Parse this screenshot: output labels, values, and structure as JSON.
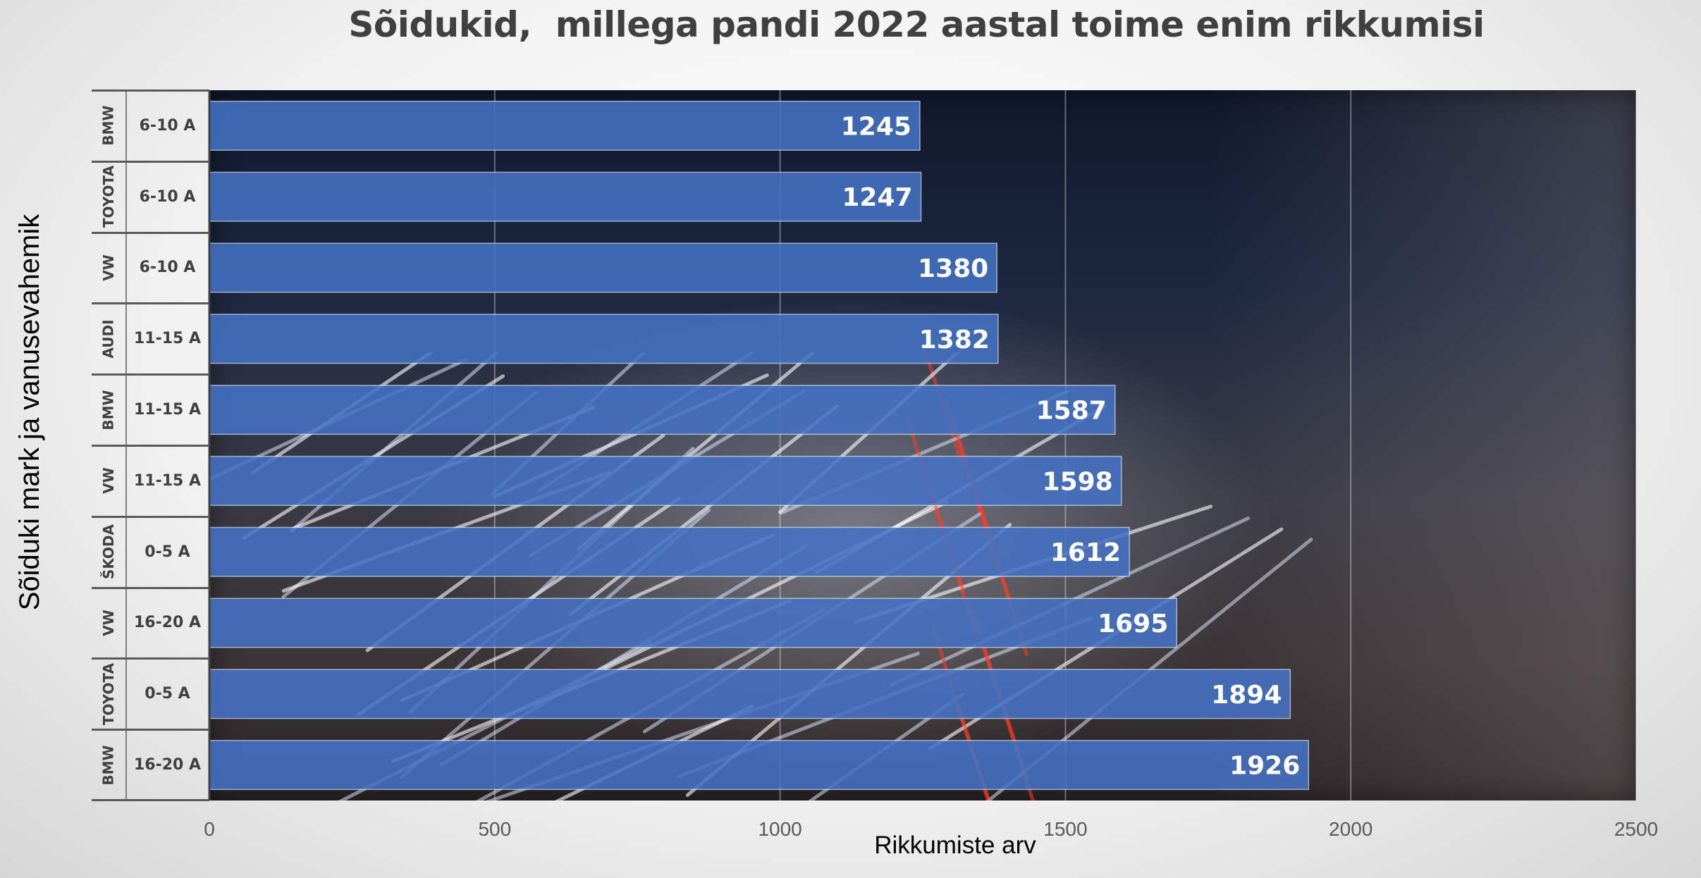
{
  "chart_data": {
    "type": "bar",
    "orientation": "horizontal",
    "title": "Sõidukid,  millega pandi 2022 aastal toime enim rikkumisi",
    "xlabel": "Rikkumiste arv",
    "ylabel": "Sõiduki mark ja vanusevahemik",
    "xlim": [
      0,
      2500
    ],
    "x_ticks": [
      "0",
      "500",
      "1000",
      "1500",
      "2000",
      "2500"
    ],
    "grid": "vertical",
    "legend": "none",
    "bar_color": "#4472c4",
    "categories": [
      {
        "brand": "BMW",
        "age": "6-10 A"
      },
      {
        "brand": "TOYOTA",
        "age": "6-10 A"
      },
      {
        "brand": "VW",
        "age": "6-10 A"
      },
      {
        "brand": "AUDI",
        "age": "11-15 A"
      },
      {
        "brand": "BMW",
        "age": "11-15 A"
      },
      {
        "brand": "VW",
        "age": "11-15 A"
      },
      {
        "brand": "ŠKODA",
        "age": "0-5 A"
      },
      {
        "brand": "VW",
        "age": "16-20 A"
      },
      {
        "brand": "TOYOTA",
        "age": "0-5 A"
      },
      {
        "brand": "BMW",
        "age": "16-20 A"
      }
    ],
    "values": [
      1245,
      1247,
      1380,
      1382,
      1587,
      1598,
      1612,
      1695,
      1894,
      1926
    ],
    "data_labels": [
      "1245",
      "1247",
      "1380",
      "1382",
      "1587",
      "1598",
      "1612",
      "1695",
      "1894",
      "1926"
    ]
  }
}
